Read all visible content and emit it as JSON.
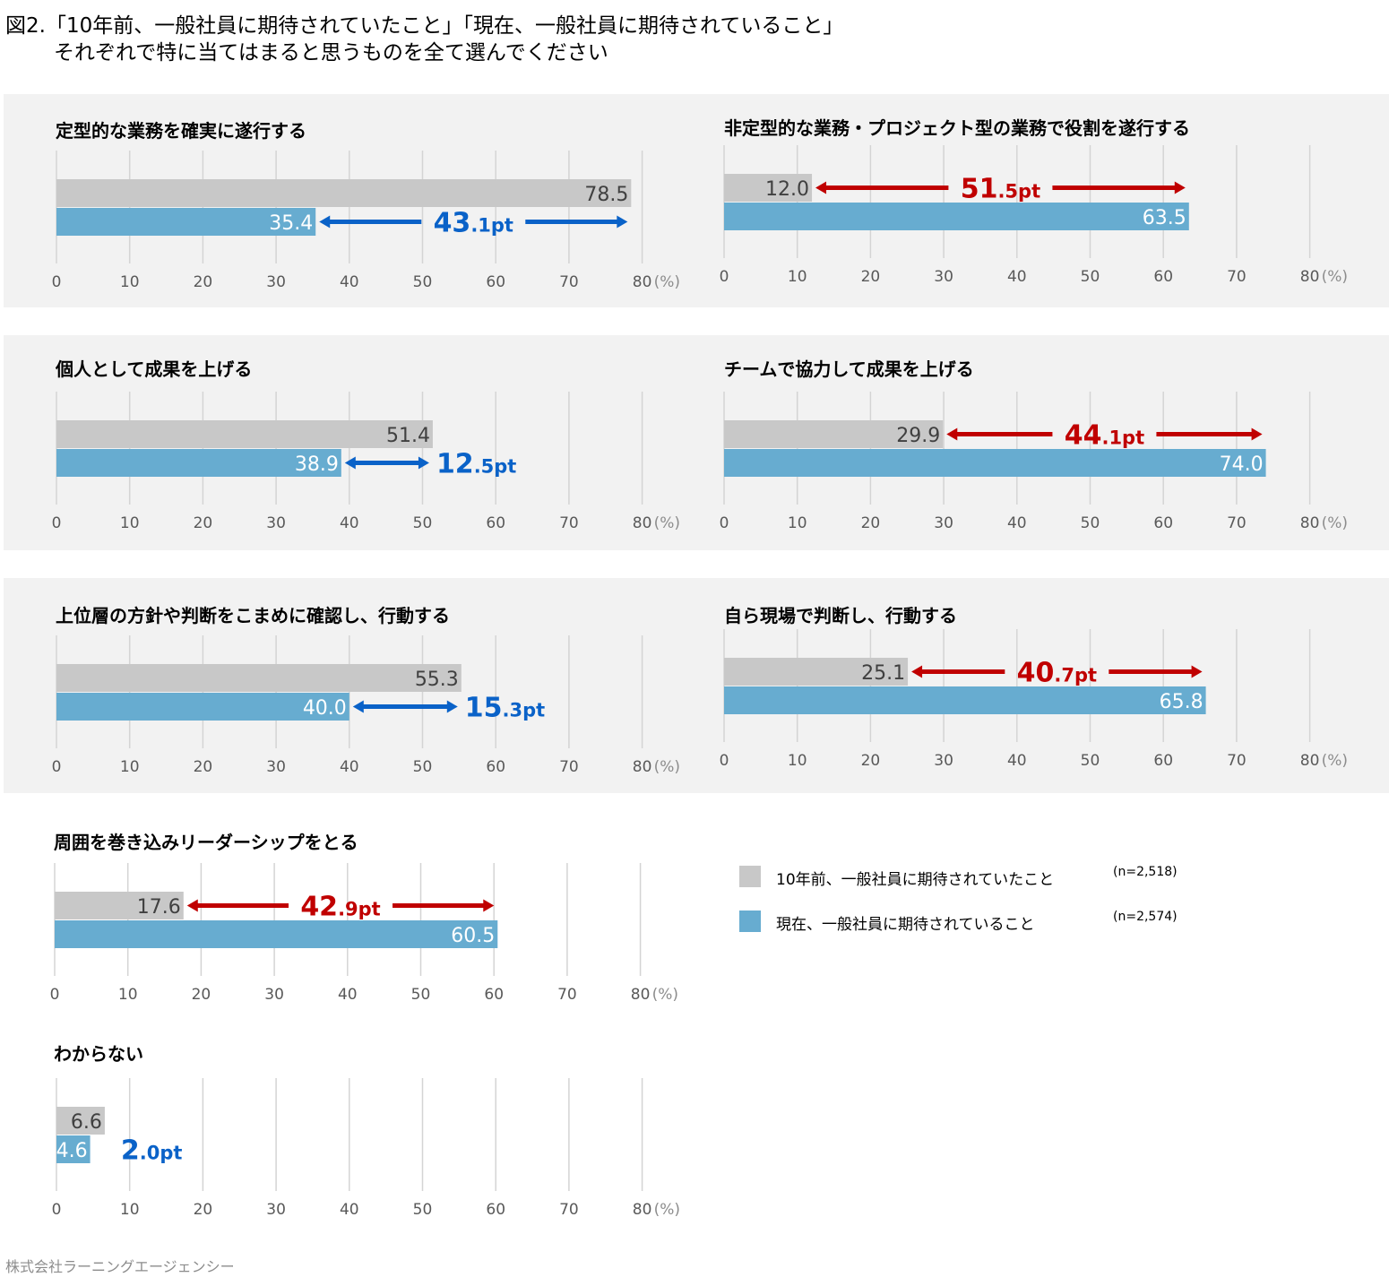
{
  "title_line1": "図2.「10年前、一般社員に期待されていたこと」「現在、一般社員に期待されていること」",
  "title_line2": "それぞれで特に当てはまると思うものを全て選んでください",
  "footer": "株式会社ラーニングエージェンシー",
  "legend": [
    {
      "label": "10年前、一般社員に期待されていたこと",
      "n": "(n=2,518)",
      "color": "#c8c8c8"
    },
    {
      "label": "現在、一般社員に期待されていること",
      "n": "(n=2,574)",
      "color": "#67acd0"
    }
  ],
  "colors": {
    "past": "#c8c8c8",
    "present": "#67acd0",
    "increase": "#c00000",
    "decrease": "#0a62c8"
  },
  "chart_data": [
    {
      "type": "bar",
      "title": "定型的な業務を確実に遂行する",
      "categories": [
        "10年前、一般社員に期待されていたこと",
        "現在、一般社員に期待されていること"
      ],
      "values": [
        78.5,
        35.4
      ],
      "value_labels": [
        "78.5",
        "35.4"
      ],
      "difference": {
        "major": "43",
        "minor": ".1pt",
        "direction": "decrease"
      },
      "xlim": [
        0,
        80
      ],
      "xticks": [
        "0",
        "10",
        "20",
        "30",
        "40",
        "50",
        "60",
        "70",
        "80"
      ],
      "unit": "(%)"
    },
    {
      "type": "bar",
      "title": "非定型的な業務・プロジェクト型の業務で役割を遂行する",
      "categories": [
        "10年前、一般社員に期待されていたこと",
        "現在、一般社員に期待されていること"
      ],
      "values": [
        12.0,
        63.5
      ],
      "value_labels": [
        "12.0",
        "63.5"
      ],
      "difference": {
        "major": "51",
        "minor": ".5pt",
        "direction": "increase"
      },
      "xlim": [
        0,
        80
      ],
      "xticks": [
        "0",
        "10",
        "20",
        "30",
        "40",
        "50",
        "60",
        "70",
        "80"
      ],
      "unit": "(%)"
    },
    {
      "type": "bar",
      "title": "個人として成果を上げる",
      "categories": [
        "10年前、一般社員に期待されていたこと",
        "現在、一般社員に期待されていること"
      ],
      "values": [
        51.4,
        38.9
      ],
      "value_labels": [
        "51.4",
        "38.9"
      ],
      "difference": {
        "major": "12",
        "minor": ".5pt",
        "direction": "decrease"
      },
      "xlim": [
        0,
        80
      ],
      "xticks": [
        "0",
        "10",
        "20",
        "30",
        "40",
        "50",
        "60",
        "70",
        "80"
      ],
      "unit": "(%)"
    },
    {
      "type": "bar",
      "title": "チームで協力して成果を上げる",
      "categories": [
        "10年前、一般社員に期待されていたこと",
        "現在、一般社員に期待されていること"
      ],
      "values": [
        29.9,
        74.0
      ],
      "value_labels": [
        "29.9",
        "74.0"
      ],
      "difference": {
        "major": "44",
        "minor": ".1pt",
        "direction": "increase"
      },
      "xlim": [
        0,
        80
      ],
      "xticks": [
        "0",
        "10",
        "20",
        "30",
        "40",
        "50",
        "60",
        "70",
        "80"
      ],
      "unit": "(%)"
    },
    {
      "type": "bar",
      "title": "上位層の方針や判断をこまめに確認し、行動する",
      "categories": [
        "10年前、一般社員に期待されていたこと",
        "現在、一般社員に期待されていること"
      ],
      "values": [
        55.3,
        40.0
      ],
      "value_labels": [
        "55.3",
        "40.0"
      ],
      "difference": {
        "major": "15",
        "minor": ".3pt",
        "direction": "decrease"
      },
      "xlim": [
        0,
        80
      ],
      "xticks": [
        "0",
        "10",
        "20",
        "30",
        "40",
        "50",
        "60",
        "70",
        "80"
      ],
      "unit": "(%)"
    },
    {
      "type": "bar",
      "title": "自ら現場で判断し、行動する",
      "categories": [
        "10年前、一般社員に期待されていたこと",
        "現在、一般社員に期待されていること"
      ],
      "values": [
        25.1,
        65.8
      ],
      "value_labels": [
        "25.1",
        "65.8"
      ],
      "difference": {
        "major": "40",
        "minor": ".7pt",
        "direction": "increase"
      },
      "xlim": [
        0,
        80
      ],
      "xticks": [
        "0",
        "10",
        "20",
        "30",
        "40",
        "50",
        "60",
        "70",
        "80"
      ],
      "unit": "(%)"
    },
    {
      "type": "bar",
      "title": "周囲を巻き込みリーダーシップをとる",
      "categories": [
        "10年前、一般社員に期待されていたこと",
        "現在、一般社員に期待されていること"
      ],
      "values": [
        17.6,
        60.5
      ],
      "value_labels": [
        "17.6",
        "60.5"
      ],
      "difference": {
        "major": "42",
        "minor": ".9pt",
        "direction": "increase"
      },
      "xlim": [
        0,
        80
      ],
      "xticks": [
        "0",
        "10",
        "20",
        "30",
        "40",
        "50",
        "60",
        "70",
        "80"
      ],
      "unit": "(%)"
    },
    {
      "type": "bar",
      "title": "わからない",
      "categories": [
        "10年前、一般社員に期待されていたこと",
        "現在、一般社員に期待されていること"
      ],
      "values": [
        6.6,
        4.6
      ],
      "value_labels": [
        "6.6",
        "4.6"
      ],
      "difference": {
        "major": "2",
        "minor": ".0pt",
        "direction": "decrease"
      },
      "xlim": [
        0,
        80
      ],
      "xticks": [
        "0",
        "10",
        "20",
        "30",
        "40",
        "50",
        "60",
        "70",
        "80"
      ],
      "unit": "(%)"
    }
  ]
}
